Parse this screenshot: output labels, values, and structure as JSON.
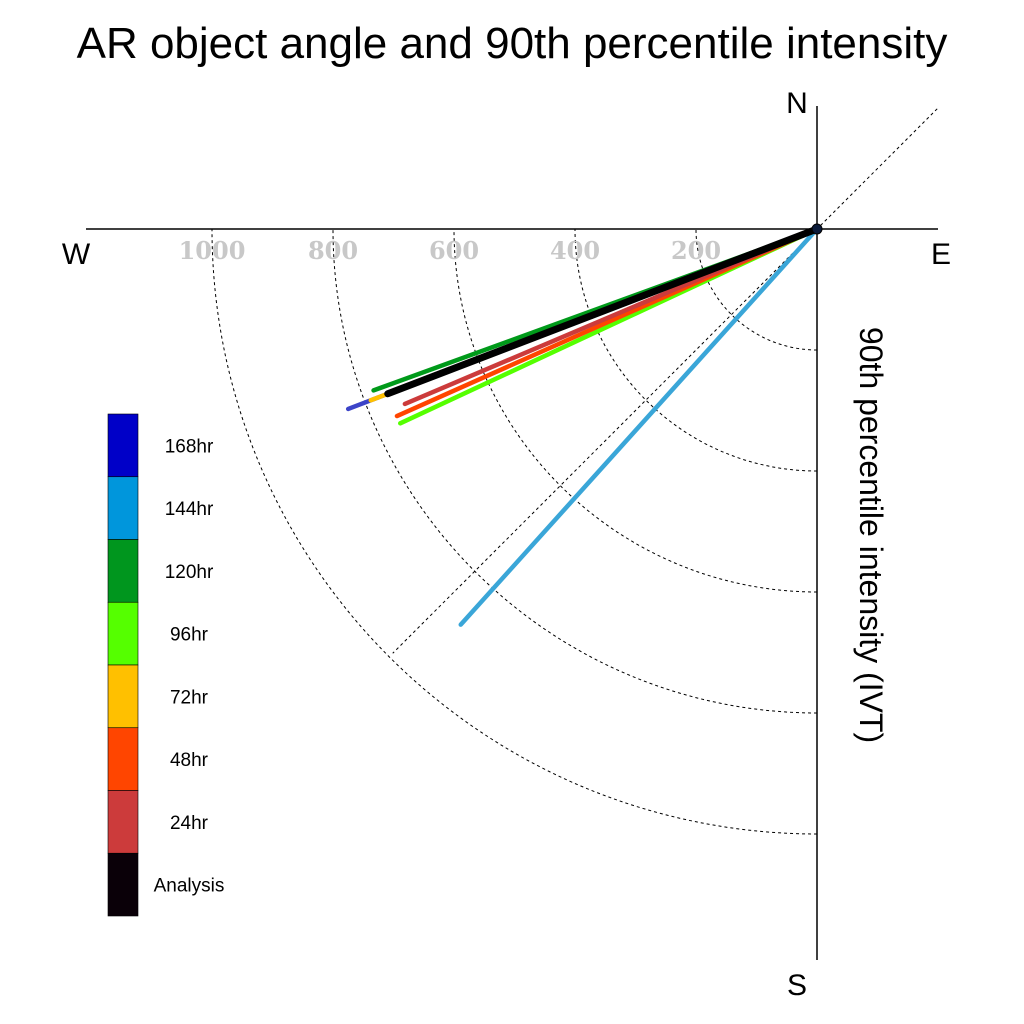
{
  "chart_data": {
    "type": "polar-vector",
    "title": "AR object angle and 90th percentile intensity",
    "ylabel": "90th percentile intensity (IVT)",
    "compass": {
      "north": "N",
      "south": "S",
      "east": "E",
      "west": "W"
    },
    "radial_ticks": [
      "200",
      "400",
      "600",
      "800",
      "1000"
    ],
    "rlim": [
      0,
      1200
    ],
    "grid": true,
    "legend_position": "left",
    "series": [
      {
        "name": "144hr",
        "angle_deg_from_north": 222,
        "intensity": 880,
        "color": "#3aa6d8"
      },
      {
        "name": "120hr",
        "angle_deg_from_north": 250,
        "intensity": 780,
        "color": "#009a1a"
      },
      {
        "name": "168hr",
        "angle_deg_from_north": 249,
        "intensity": 830,
        "color": "#3c44c8"
      },
      {
        "name": "72hr",
        "angle_deg_from_north": 249,
        "intensity": 790,
        "color": "#ffc000"
      },
      {
        "name": "96hr",
        "angle_deg_from_north": 245,
        "intensity": 760,
        "color": "#55ff00"
      },
      {
        "name": "48hr",
        "angle_deg_from_north": 246,
        "intensity": 760,
        "color": "#ff4500"
      },
      {
        "name": "24hr",
        "angle_deg_from_north": 247,
        "intensity": 740,
        "color": "#cc3b3b"
      },
      {
        "name": "Analysis",
        "angle_deg_from_north": 249,
        "intensity": 760,
        "color": "#000000"
      }
    ],
    "legend": [
      {
        "label": "168hr",
        "color": "#0000c8"
      },
      {
        "label": "144hr",
        "color": "#0096dc"
      },
      {
        "label": "120hr",
        "color": "#00961e"
      },
      {
        "label": "96hr",
        "color": "#55ff00"
      },
      {
        "label": "72hr",
        "color": "#ffc000"
      },
      {
        "label": "48hr",
        "color": "#ff4500"
      },
      {
        "label": "24hr",
        "color": "#cc3b3b"
      },
      {
        "label": "Analysis",
        "color": "#0a0008"
      }
    ]
  }
}
